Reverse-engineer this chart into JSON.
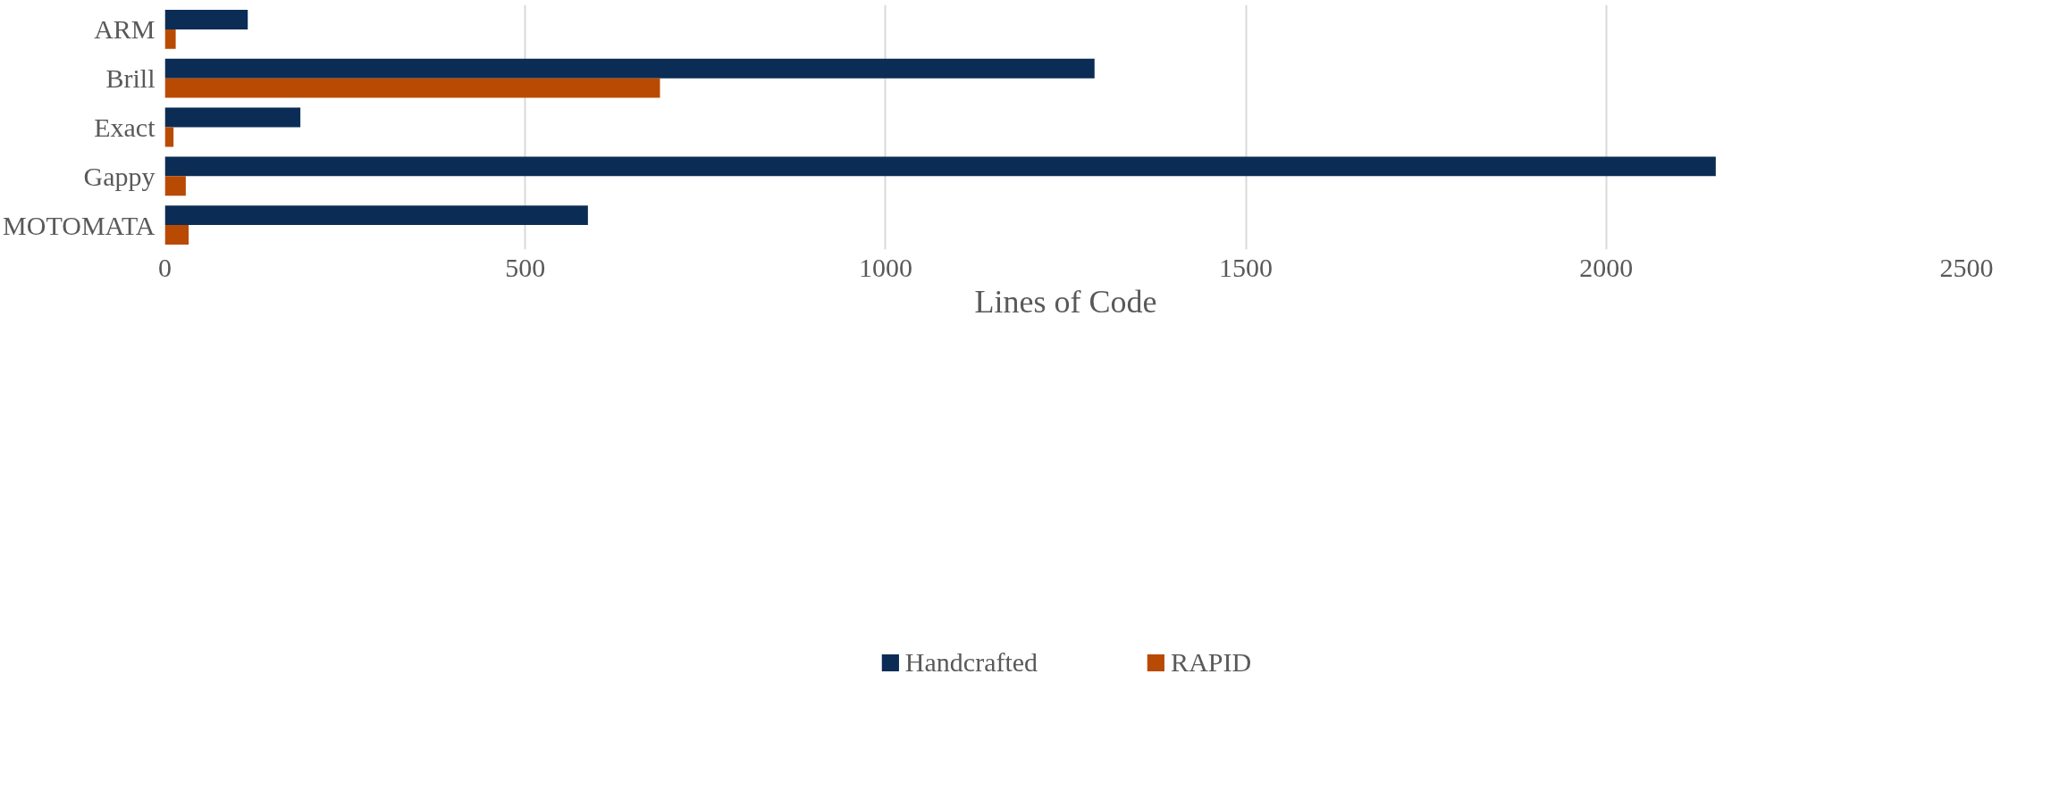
{
  "chart_data": {
    "type": "bar",
    "orientation": "horizontal",
    "xlabel": "Lines of Code",
    "categories": [
      "ARM",
      "Brill",
      "Exact",
      "Gappy",
      "MOTOMATA"
    ],
    "series": [
      {
        "name": "Handcrafted",
        "color": "#0b2d55",
        "values": [
          115,
          1290,
          188,
          2152,
          587
        ]
      },
      {
        "name": "RAPID",
        "color": "#b94a04",
        "values": [
          15,
          687,
          12,
          29,
          33
        ]
      }
    ],
    "xlim": [
      0,
      2500
    ],
    "xticks": [
      0,
      500,
      1000,
      1500,
      2000,
      2500
    ],
    "grid": "x",
    "legend": "bottom"
  }
}
